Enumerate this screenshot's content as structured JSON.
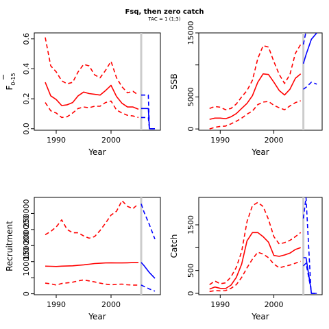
{
  "figure": {
    "title": "Fsq, then zero catch",
    "subtitle": "TAC = 1 (1;3)"
  },
  "colors": {
    "history": "#ff0000",
    "projection": "#0000ff",
    "divider": "#cccccc",
    "frame": "#000000"
  },
  "chart_data": [
    {
      "type": "line",
      "panel": "top-left",
      "xlabel": "Year",
      "ylabel": "F",
      "ylabel_bar": true,
      "ylabel_sub": "0-15",
      "xlim": [
        1986,
        2009
      ],
      "ylim": [
        -0.01,
        0.64
      ],
      "xticks": [
        1990,
        2000
      ],
      "yticks": [
        0.0,
        0.2,
        0.4,
        0.6
      ],
      "ytick_labels": [
        "0.0",
        "0.2",
        "0.4",
        "0.6"
      ],
      "divider_year": 2005.5,
      "history": {
        "x": [
          1988,
          1989,
          1990,
          1991,
          1992,
          1993,
          1994,
          1995,
          1996,
          1997,
          1998,
          1999,
          2000,
          2001,
          2002,
          2003,
          2004,
          2005
        ],
        "median": [
          0.31,
          0.22,
          0.195,
          0.155,
          0.16,
          0.175,
          0.22,
          0.245,
          0.235,
          0.23,
          0.225,
          0.255,
          0.29,
          0.215,
          0.17,
          0.145,
          0.145,
          0.13
        ],
        "lower": [
          0.175,
          0.12,
          0.105,
          0.075,
          0.08,
          0.105,
          0.135,
          0.145,
          0.14,
          0.15,
          0.15,
          0.175,
          0.185,
          0.125,
          0.105,
          0.09,
          0.085,
          0.075
        ],
        "upper": [
          0.61,
          0.42,
          0.38,
          0.32,
          0.3,
          0.31,
          0.38,
          0.43,
          0.42,
          0.36,
          0.34,
          0.39,
          0.45,
          0.34,
          0.28,
          0.24,
          0.25,
          0.225
        ]
      },
      "projection": {
        "x": [
          2005.5,
          2006,
          2006.8,
          2007,
          2008
        ],
        "median": [
          0.135,
          0.135,
          0.135,
          0.0,
          0.0
        ],
        "lower": [
          0.075,
          0.075,
          0.075,
          0.0,
          0.0
        ],
        "upper": [
          0.225,
          0.225,
          0.225,
          0.0,
          0.0
        ]
      }
    },
    {
      "type": "line",
      "panel": "top-right",
      "xlabel": "Year",
      "ylabel": "SSB",
      "xlim": [
        1986,
        2009
      ],
      "ylim": [
        -200,
        15000
      ],
      "xticks": [
        1990,
        2000
      ],
      "yticks": [
        0,
        5000,
        10000,
        15000
      ],
      "ytick_labels": [
        "0",
        "5000",
        "",
        "15000"
      ],
      "divider_year": 2005.5,
      "history": {
        "x": [
          1988,
          1989,
          1990,
          1991,
          1992,
          1993,
          1994,
          1995,
          1996,
          1997,
          1998,
          1999,
          2000,
          2001,
          2002,
          2003,
          2004,
          2005
        ],
        "median": [
          1500,
          1700,
          1700,
          1600,
          1900,
          2400,
          3200,
          4000,
          5200,
          7300,
          8600,
          8500,
          7300,
          6000,
          5300,
          6200,
          7900,
          8600
        ],
        "lower": [
          0,
          250,
          400,
          450,
          800,
          1200,
          1700,
          2300,
          2800,
          3800,
          4200,
          4300,
          3700,
          3300,
          3000,
          3600,
          4100,
          4400
        ],
        "upper": [
          3200,
          3500,
          3400,
          3000,
          3200,
          3900,
          5000,
          6000,
          7600,
          11000,
          13000,
          12800,
          10500,
          8500,
          7100,
          8500,
          11800,
          13200
        ]
      },
      "projection": {
        "x": [
          2005.5,
          2006,
          2007,
          2008
        ],
        "median": [
          10200,
          11600,
          14000,
          15000
        ],
        "lower": [
          6200,
          6500,
          7300,
          7000
        ],
        "upper": [
          13200,
          15200,
          15200,
          15200
        ]
      }
    },
    {
      "type": "line",
      "panel": "bottom-left",
      "xlabel": "Year",
      "ylabel": "Recruitment",
      "xlim": [
        1986,
        2009
      ],
      "ylim": [
        -3000,
        300000
      ],
      "xticks": [
        1990,
        2000
      ],
      "yticks": [
        0,
        50000,
        100000,
        150000,
        200000,
        250000
      ],
      "ytick_labels": [
        "0",
        "",
        "100000",
        "150000",
        "200000",
        "250000"
      ],
      "divider_year": 2005.5,
      "history": {
        "x": [
          1988,
          1989,
          1990,
          1991,
          1992,
          1993,
          1994,
          1995,
          1996,
          1997,
          1998,
          1999,
          2000,
          2001,
          2002,
          2003,
          2004,
          2005
        ],
        "median": [
          86000,
          85500,
          85000,
          86000,
          86500,
          87000,
          88500,
          90000,
          92000,
          94000,
          95000,
          96000,
          96500,
          96000,
          96000,
          96500,
          97000,
          97500
        ],
        "lower": [
          33000,
          31000,
          27000,
          32000,
          34000,
          36000,
          40000,
          43000,
          40000,
          37000,
          33000,
          30000,
          28000,
          29000,
          30000,
          28000,
          27000,
          27000
        ],
        "upper": [
          184000,
          194000,
          208000,
          230000,
          200000,
          190000,
          190000,
          180000,
          173000,
          178000,
          197000,
          220000,
          245000,
          257000,
          290000,
          272000,
          265000,
          280000
        ]
      },
      "projection": {
        "x": [
          2005.5,
          2006,
          2007,
          2008
        ],
        "median": [
          97500,
          88000,
          66000,
          48000
        ],
        "lower": [
          27000,
          23000,
          15000,
          8000
        ],
        "upper": [
          280000,
          255000,
          215000,
          170000
        ]
      }
    },
    {
      "type": "line",
      "panel": "bottom-right",
      "xlabel": "Year",
      "ylabel": "Catch",
      "xlim": [
        1986,
        2009
      ],
      "ylim": [
        -30,
        2100
      ],
      "xticks": [
        1990,
        2000
      ],
      "yticks": [
        0,
        500,
        1000,
        1500
      ],
      "ytick_labels": [
        "0",
        "500",
        "",
        "1500"
      ],
      "divider_year": 2005.5,
      "history": {
        "x": [
          1988,
          1989,
          1990,
          1991,
          1992,
          1993,
          1994,
          1995,
          1996,
          1997,
          1998,
          1999,
          2000,
          2001,
          2002,
          2003,
          2004,
          2005
        ],
        "median": [
          95,
          140,
          110,
          105,
          180,
          350,
          640,
          1150,
          1330,
          1330,
          1240,
          1120,
          830,
          810,
          840,
          880,
          960,
          1000
        ],
        "lower": [
          40,
          60,
          55,
          60,
          110,
          190,
          350,
          560,
          750,
          900,
          860,
          780,
          640,
          560,
          590,
          620,
          660,
          700
        ],
        "upper": [
          190,
          270,
          210,
          230,
          360,
          570,
          920,
          1570,
          1920,
          1990,
          1900,
          1620,
          1240,
          1080,
          1110,
          1160,
          1240,
          1330
        ]
      },
      "projection": {
        "x": [
          2005.5,
          2006,
          2006.9,
          2007,
          2008
        ],
        "median": [
          780,
          780,
          100,
          0,
          0
        ],
        "lower": [
          600,
          660,
          100,
          0,
          0
        ],
        "upper": [
          1640,
          2100,
          100,
          0,
          0
        ]
      }
    }
  ]
}
